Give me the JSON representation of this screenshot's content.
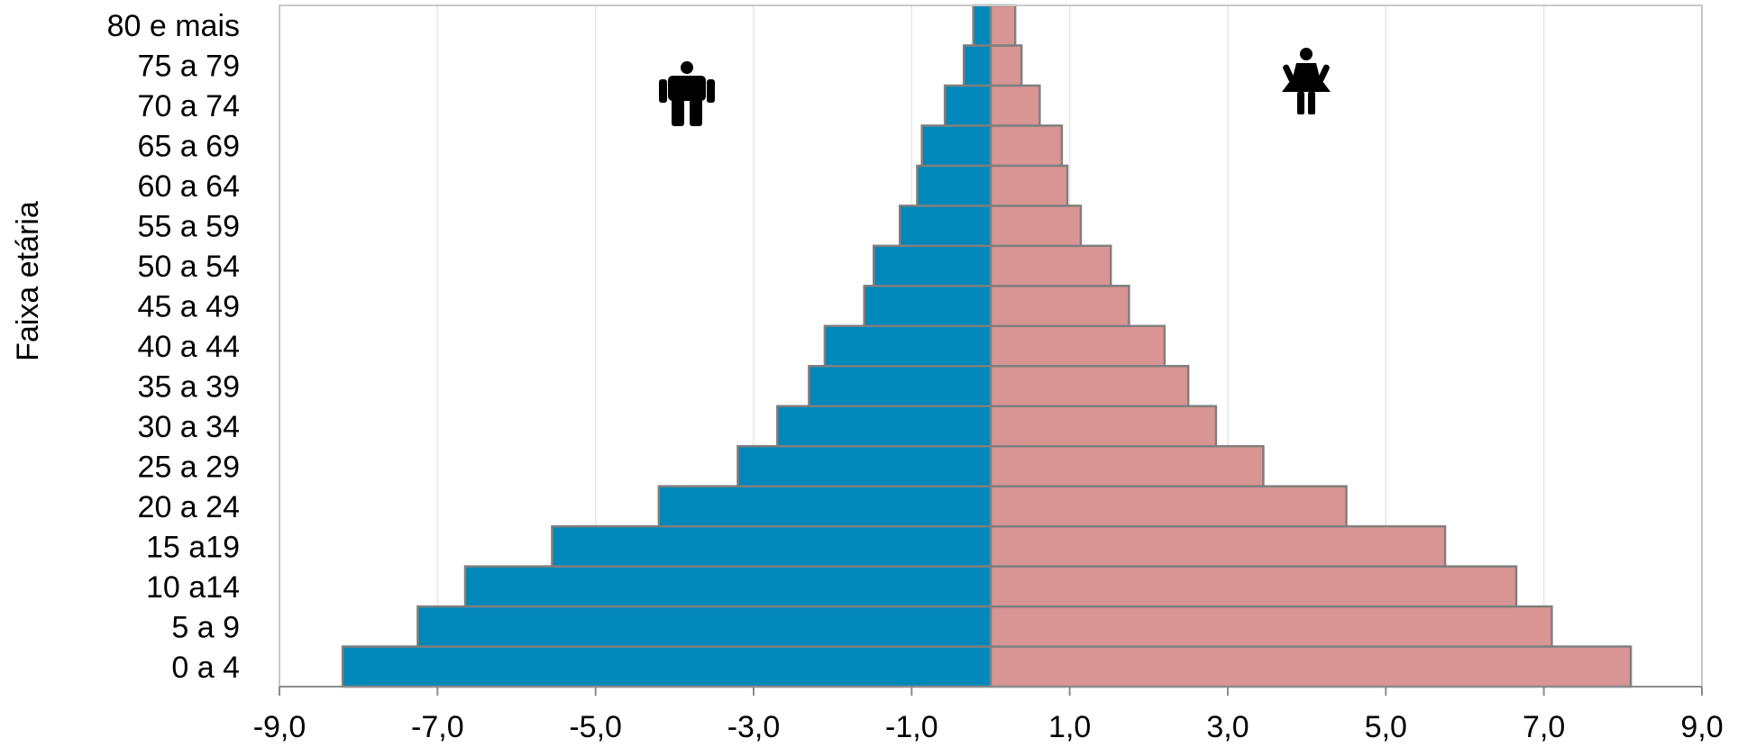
{
  "chart_data": {
    "type": "bar",
    "orientation": "horizontal",
    "stacked_diverging": true,
    "ylabel": "Faixa etária",
    "xlabel": "",
    "xlim": [
      -9,
      9
    ],
    "x_ticks": [
      -9,
      -7,
      -5,
      -3,
      -1,
      1,
      3,
      5,
      7,
      9
    ],
    "x_tick_labels": [
      "-9,0",
      "-7,0",
      "-5,0",
      "-3,0",
      "-1,0",
      "1,0",
      "3,0",
      "5,0",
      "7,0",
      "9,0"
    ],
    "categories": [
      "0 a 4",
      "5 a 9",
      "10 a14",
      "15 a19",
      "20 a 24",
      "25 a 29",
      "30 a 34",
      "35 a 39",
      "40 a 44",
      "45 a 49",
      "50 a 54",
      "55 a 59",
      "60 a 64",
      "65 a 69",
      "70 a 74",
      "75 a 79",
      "80  e mais"
    ],
    "series": [
      {
        "values": [
          -8.2,
          -7.25,
          -6.65,
          -5.55,
          -4.2,
          -3.2,
          -2.7,
          -2.3,
          -2.1,
          -1.6,
          -1.48,
          -1.15,
          -0.93,
          -0.87,
          -0.58,
          -0.34,
          -0.22
        ],
        "color": "#0088ba",
        "icon": "male-icon"
      },
      {
        "values": [
          8.1,
          7.1,
          6.65,
          5.75,
          4.5,
          3.45,
          2.85,
          2.5,
          2.2,
          1.75,
          1.52,
          1.14,
          0.97,
          0.9,
          0.62,
          0.39,
          0.31
        ],
        "color": "#d99594",
        "icon": "female-icon"
      }
    ],
    "bar_stroke_color": "#7f7f7f",
    "grid": "vertical",
    "grid_color": "#e6e6e6",
    "legend": "none"
  }
}
